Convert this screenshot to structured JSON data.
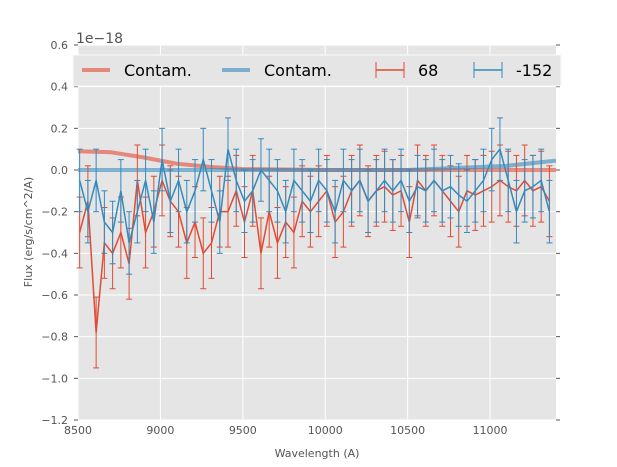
{
  "chart_data": {
    "type": "line",
    "title": "",
    "xlabel": "Wavelength (A)",
    "ylabel": "Flux (erg/s/cm^2/A)",
    "offset_label": "1e−18",
    "xlim": [
      8500,
      11400
    ],
    "ylim": [
      -1.2,
      0.6
    ],
    "xticks": [
      8500,
      9000,
      9500,
      10000,
      10500,
      11000
    ],
    "yticks": [
      0.6,
      0.4,
      0.2,
      0.0,
      -0.2,
      -0.4,
      -0.6,
      -0.8,
      -1.0,
      -1.2
    ],
    "ytick_labels": [
      "0.6",
      "0.4",
      "0.2",
      "0.0",
      "−0.2",
      "−0.4",
      "−0.6",
      "−0.8",
      "−1.0",
      "−1.2"
    ],
    "grid": true,
    "legend_position": "top",
    "wavelength_start": 8510,
    "wavelength_step": 50,
    "series": [
      {
        "name": "Contam.",
        "kind": "contam",
        "color": "#E24A33",
        "x": [
          8500,
          8700,
          8900,
          9100,
          9300,
          9500,
          10000,
          11000,
          11400
        ],
        "y": [
          0.09,
          0.085,
          0.06,
          0.03,
          0.015,
          0.005,
          0.0,
          0.0,
          0.0
        ]
      },
      {
        "name": "Contam.",
        "kind": "contam",
        "color": "#348ABD",
        "x": [
          8500,
          9000,
          10000,
          10500,
          10800,
          11100,
          11400
        ],
        "y": [
          0.0,
          0.0,
          0.0,
          0.0,
          0.01,
          0.02,
          0.045
        ]
      },
      {
        "name": "68",
        "kind": "errorbar",
        "color": "#E24A33",
        "yerr": 0.17,
        "y": [
          -0.3,
          -0.15,
          -0.78,
          -0.35,
          -0.4,
          -0.3,
          -0.45,
          -0.05,
          -0.3,
          -0.2,
          -0.05,
          -0.15,
          -0.2,
          -0.35,
          -0.25,
          -0.4,
          -0.35,
          -0.2,
          -0.2,
          -0.1,
          -0.25,
          -0.1,
          -0.4,
          -0.2,
          -0.35,
          -0.25,
          -0.3,
          -0.15,
          -0.2,
          -0.15,
          -0.1,
          -0.25,
          -0.2,
          -0.1,
          -0.05,
          -0.15,
          -0.1,
          -0.08,
          -0.12,
          -0.1,
          -0.25,
          -0.05,
          -0.1,
          -0.05,
          -0.1,
          -0.15,
          -0.2,
          -0.1,
          -0.12,
          -0.1,
          -0.08,
          -0.05,
          -0.08,
          -0.1,
          -0.05,
          -0.1,
          -0.08,
          -0.15
        ]
      },
      {
        "name": "-152",
        "kind": "errorbar",
        "color": "#348ABD",
        "yerr": 0.15,
        "y": [
          -0.05,
          -0.2,
          -0.05,
          -0.25,
          -0.3,
          -0.1,
          -0.35,
          -0.2,
          -0.05,
          -0.25,
          0.05,
          -0.15,
          -0.05,
          -0.2,
          -0.1,
          0.05,
          -0.1,
          -0.25,
          0.1,
          -0.05,
          -0.15,
          -0.1,
          0.0,
          -0.05,
          -0.1,
          -0.2,
          -0.05,
          -0.1,
          -0.15,
          -0.05,
          -0.1,
          -0.2,
          -0.05,
          -0.1,
          -0.05,
          -0.15,
          -0.1,
          -0.05,
          -0.1,
          -0.05,
          -0.15,
          -0.08,
          -0.1,
          -0.05,
          -0.1,
          -0.08,
          -0.12,
          -0.15,
          -0.1,
          -0.05,
          0.05,
          0.1,
          -0.05,
          -0.2,
          -0.1,
          -0.08,
          -0.05,
          -0.2
        ]
      }
    ]
  }
}
